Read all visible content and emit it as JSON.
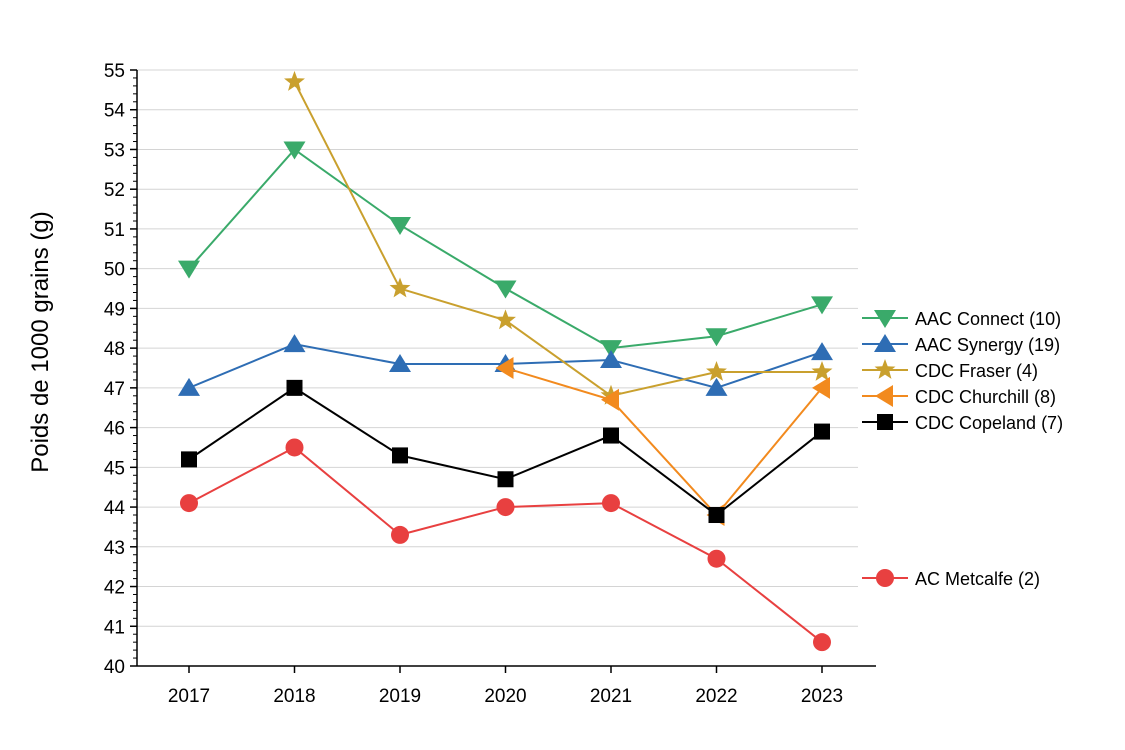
{
  "chart_data": {
    "type": "line",
    "title": "",
    "xlabel": "",
    "ylabel": "Poids de 1000 grains (g)",
    "x": [
      "2017",
      "2018",
      "2019",
      "2020",
      "2021",
      "2022",
      "2023"
    ],
    "ylim": [
      40,
      55
    ],
    "yticks": [
      "40",
      "41",
      "42",
      "43",
      "44",
      "45",
      "46",
      "47",
      "48",
      "49",
      "50",
      "51",
      "52",
      "53",
      "54",
      "55"
    ],
    "grid": true,
    "legend_position": "right",
    "series": [
      {
        "name": "AAC Connect",
        "count": "(10)",
        "color": "#3aaa6a",
        "marker": "triangle-down",
        "values": [
          50.0,
          53.0,
          51.1,
          49.5,
          48.0,
          48.3,
          49.1
        ]
      },
      {
        "name": "AAC Synergy",
        "count": "(19)",
        "color": "#2e6db4",
        "marker": "triangle-up",
        "values": [
          47.0,
          48.1,
          47.6,
          47.6,
          47.7,
          47.0,
          47.9
        ]
      },
      {
        "name": "CDC Fraser",
        "count": "(4)",
        "color": "#c9a02e",
        "marker": "star",
        "values": [
          null,
          54.7,
          49.5,
          48.7,
          46.8,
          47.4,
          47.4
        ]
      },
      {
        "name": "CDC Churchill",
        "count": "(8)",
        "color": "#f28a1e",
        "marker": "triangle-left",
        "values": [
          null,
          null,
          null,
          47.5,
          46.7,
          43.8,
          47.0
        ]
      },
      {
        "name": "CDC Copeland",
        "count": "(7)",
        "color": "#000000",
        "marker": "square",
        "values": [
          45.2,
          47.0,
          45.3,
          44.7,
          45.8,
          43.8,
          45.9
        ]
      },
      {
        "name": "AC Metcalfe",
        "count": "(2)",
        "color": "#e84040",
        "marker": "circle",
        "values": [
          44.1,
          45.5,
          43.3,
          44.0,
          44.1,
          42.7,
          40.6
        ]
      }
    ]
  }
}
